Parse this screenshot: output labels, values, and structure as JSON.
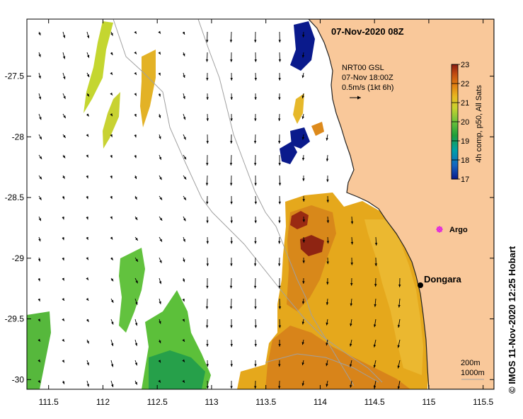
{
  "chart_data": {
    "type": "map",
    "title": "07-Nov-2020 08Z",
    "variable_label": "4h comp, p50, All Sats",
    "current_info": {
      "line1": "NRT00 GSL",
      "line2": "07-Nov 18:00Z",
      "line3": "0.5m/s (1kt 6h)"
    },
    "colorbar": {
      "min": 17,
      "max": 23,
      "ticks": [
        17,
        18,
        19,
        20,
        21,
        22,
        23
      ],
      "colors": [
        "#0a1a8c",
        "#1565c0",
        "#00a0a8",
        "#1f9e3a",
        "#6cc23a",
        "#c8d22e",
        "#e8b820",
        "#e07a10",
        "#c04a10",
        "#8a1a10"
      ]
    },
    "x_axis": {
      "range": [
        111.3,
        115.6
      ],
      "ticks": [
        111.5,
        112,
        112.5,
        113,
        113.5,
        114,
        114.5,
        115,
        115.5
      ],
      "tick_labels": [
        "111.5",
        "112",
        "112.5",
        "113",
        "113.5",
        "114",
        "114.5",
        "115",
        "115.5"
      ]
    },
    "y_axis": {
      "range": [
        -30.08,
        -27.03
      ],
      "ticks": [
        -27.5,
        -28,
        -28.5,
        -29,
        -29.5,
        -30
      ],
      "tick_labels": [
        "-27.5",
        "-28",
        "-28.5",
        "-29",
        "-29.5",
        "-30"
      ]
    },
    "places": [
      {
        "name": "Dongara",
        "lon": 114.93,
        "lat": -29.25,
        "symbol": "dot"
      },
      {
        "name": "Argo",
        "lon": 115.07,
        "lat": -28.82,
        "symbol": "star"
      }
    ],
    "depth_scale": {
      "line1": "200m",
      "line2": "1000m"
    },
    "credit": "© IMOS 11-Nov-2020 12:25 Hobart",
    "colors": {
      "land": "#f9c89a",
      "coast": "#222222",
      "isobath": "#a0a0a0",
      "argo": "#e020e0"
    }
  }
}
